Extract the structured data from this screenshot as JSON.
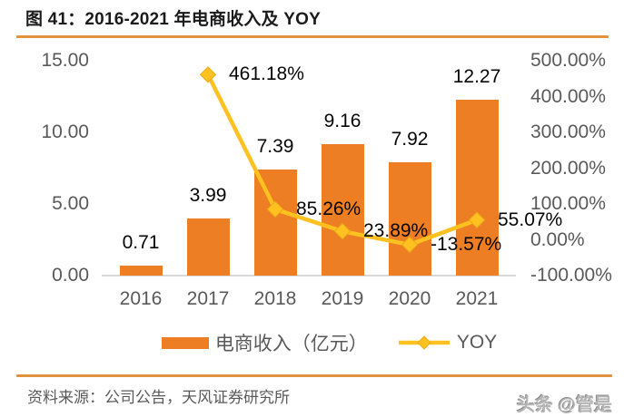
{
  "colors": {
    "bar": "#EE7E23",
    "line": "#FFC120",
    "line_marker_stroke": "#E9AC18",
    "rule": "#E0923F",
    "axis_text": "#595959",
    "label_text": "#050505",
    "baseline": "#D9D9D9"
  },
  "footer": {
    "source": "资料来源：公司公告，天风证券研究所",
    "watermark": "头条 @管是"
  },
  "chart_data": {
    "type": "combo-bar-line",
    "title": "图 41：2016-2021 年电商收入及 YOY",
    "categories": [
      "2016",
      "2017",
      "2018",
      "2019",
      "2020",
      "2021"
    ],
    "series": [
      {
        "name": "电商收入（亿元）",
        "type": "bar",
        "axis": "left",
        "values": [
          0.71,
          3.99,
          7.39,
          9.16,
          7.92,
          12.27
        ],
        "labels": [
          "0.71",
          "3.99",
          "7.39",
          "9.16",
          "7.92",
          "12.27"
        ]
      },
      {
        "name": "YOY",
        "type": "line",
        "axis": "right",
        "values": [
          null,
          461.18,
          85.26,
          23.89,
          -13.57,
          55.07
        ],
        "labels": [
          null,
          "461.18%",
          "85.26%",
          "23.89%",
          "-13.57%",
          "55.07%"
        ]
      }
    ],
    "left_axis": {
      "min": 0,
      "max": 15,
      "tick_values": [
        15,
        10,
        5,
        0
      ],
      "ticks": [
        "15.00",
        "10.00",
        "5.00",
        "0.00"
      ]
    },
    "right_axis": {
      "min": -100,
      "max": 500,
      "tick_values": [
        500,
        400,
        300,
        200,
        100,
        0,
        -100
      ],
      "ticks": [
        "500.00%",
        "400.00%",
        "300.00%",
        "200.00%",
        "100.00%",
        "0.00%",
        "-100.00%"
      ]
    },
    "legend": [
      {
        "label": "电商收入（亿元）",
        "swatch": "bar"
      },
      {
        "label": "YOY",
        "swatch": "line"
      }
    ],
    "grid": false,
    "legend_position": "bottom"
  }
}
